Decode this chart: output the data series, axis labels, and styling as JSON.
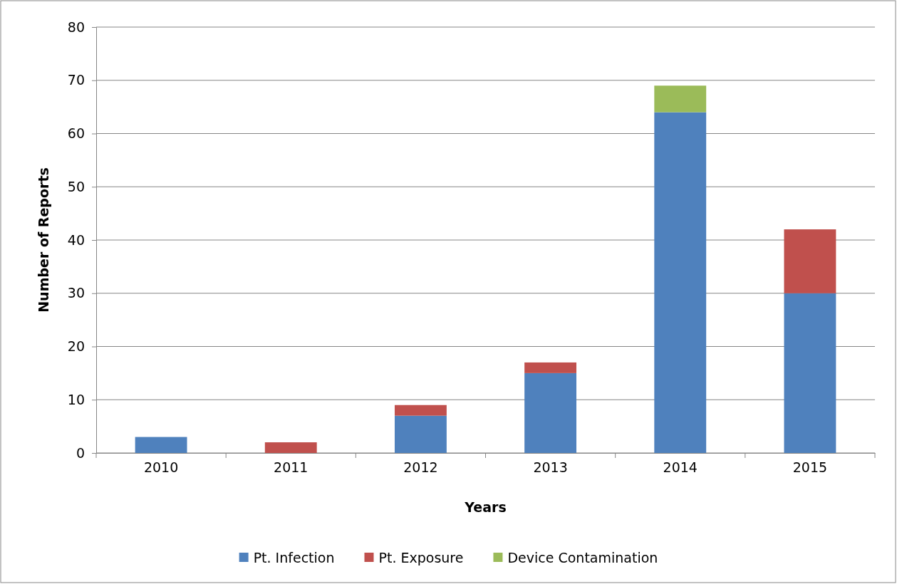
{
  "chart_data": {
    "type": "bar",
    "xlabel": "Years",
    "ylabel": "Number of Reports",
    "categories": [
      "2010",
      "2011",
      "2012",
      "2013",
      "2014",
      "2015"
    ],
    "series": [
      {
        "name": "Pt. Infection",
        "color": "#4f81bd",
        "values": [
          3,
          0,
          7,
          15,
          64,
          30
        ]
      },
      {
        "name": "Pt. Exposure",
        "color": "#c0504d",
        "values": [
          0,
          2,
          2,
          2,
          0,
          12
        ]
      },
      {
        "name": "Device Contamination",
        "color": "#9bbb59",
        "values": [
          0,
          0,
          0,
          0,
          5,
          0
        ]
      }
    ],
    "stacked": true,
    "ylim": [
      0,
      80
    ],
    "yticks": [
      0,
      10,
      20,
      30,
      40,
      50,
      60,
      70,
      80
    ],
    "grid": "y",
    "legend": "bottom"
  }
}
